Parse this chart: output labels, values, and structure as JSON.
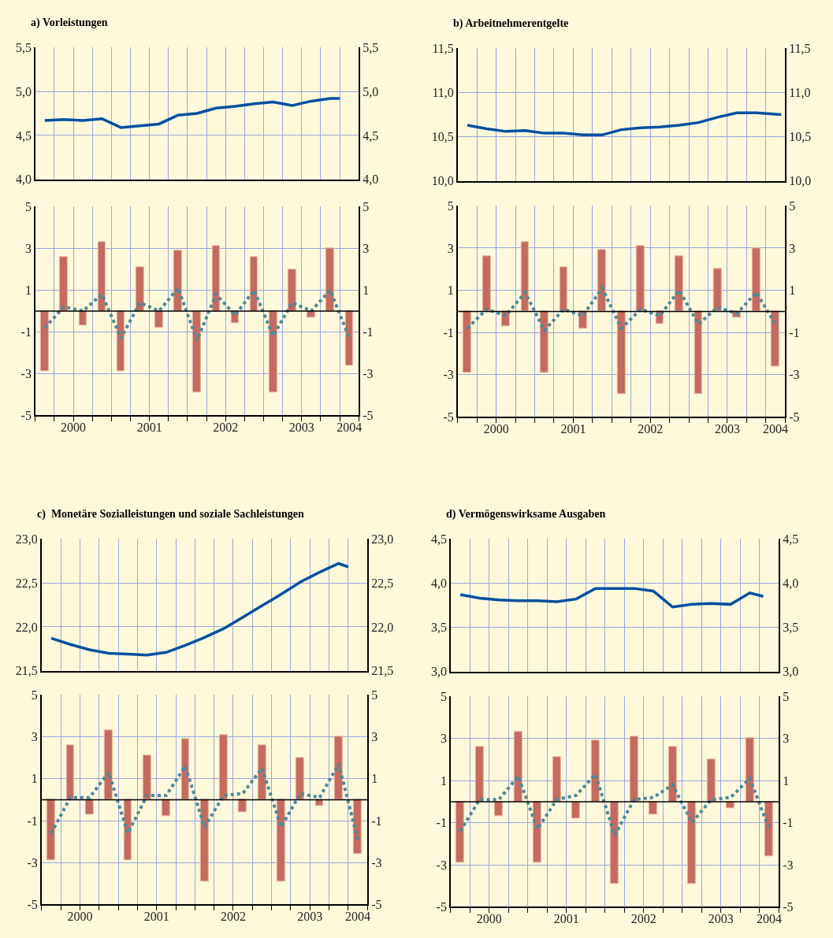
{
  "chart_data": [
    {
      "type": "line",
      "title": "a) Vorleistungen",
      "series": [
        {
          "color": "#0050a0",
          "line_style": "solid",
          "x": [
            2000.125,
            2000.375,
            2000.625,
            2000.875,
            2001.125,
            2001.375,
            2001.625,
            2001.875,
            2002.125,
            2002.375,
            2002.625,
            2002.875,
            2003.125,
            2003.375,
            2003.625,
            2003.875,
            2004.0
          ],
          "values": [
            4.67,
            4.68,
            4.67,
            4.69,
            4.59,
            4.61,
            4.63,
            4.73,
            4.75,
            4.81,
            4.83,
            4.86,
            4.88,
            4.84,
            4.89,
            4.92,
            4.92
          ]
        }
      ],
      "xlim": [
        2000,
        2004.25
      ],
      "xticks": [
        {
          "value": 2000,
          "label": null
        },
        {
          "value": 2000.25,
          "label": null
        },
        {
          "value": 2000.5,
          "label": null
        },
        {
          "value": 2000.75,
          "label": null
        },
        {
          "value": 2001,
          "label": null
        },
        {
          "value": 2001.25,
          "label": null
        },
        {
          "value": 2001.5,
          "label": null
        },
        {
          "value": 2001.75,
          "label": null
        },
        {
          "value": 2002,
          "label": null
        },
        {
          "value": 2002.25,
          "label": null
        },
        {
          "value": 2002.5,
          "label": null
        },
        {
          "value": 2002.75,
          "label": null
        },
        {
          "value": 2003,
          "label": null
        },
        {
          "value": 2003.25,
          "label": null
        },
        {
          "value": 2003.5,
          "label": null
        },
        {
          "value": 2003.75,
          "label": null
        },
        {
          "value": 2004,
          "label": null
        },
        {
          "value": 2004.25,
          "label": null
        }
      ],
      "ylim": [
        4,
        5.5
      ],
      "yticks": [
        {
          "value": 4,
          "label": "4,0"
        },
        {
          "value": 4.5,
          "label": "4,5"
        },
        {
          "value": 5,
          "label": "5,0"
        },
        {
          "value": 5.5,
          "label": "5,5"
        }
      ],
      "y2lim": [
        4,
        5.5
      ],
      "y2ticks": [
        {
          "value": 4,
          "label": "4,0"
        },
        {
          "value": 4.5,
          "label": "4,5"
        },
        {
          "value": 5,
          "label": "5,0"
        },
        {
          "value": 5.5,
          "label": "5,5"
        }
      ],
      "grid": true,
      "tick_labels": "y"
    },
    {
      "type": "bar",
      "x": [
        2000.125,
        2000.375,
        2000.625,
        2000.875,
        2001.125,
        2001.375,
        2001.625,
        2001.875,
        2002.125,
        2002.375,
        2002.625,
        2002.875,
        2003.125,
        2003.375,
        2003.625,
        2003.875,
        2004.125
      ],
      "series": [
        {
          "type": "bar",
          "color": "#c46a5e",
          "values": [
            -2.9,
            2.6,
            -0.7,
            3.3,
            -2.9,
            2.1,
            -0.8,
            2.9,
            -3.9,
            3.1,
            -0.6,
            2.6,
            -3.9,
            2.0,
            -0.3,
            3.0,
            -2.6
          ]
        },
        {
          "type": "line",
          "color": "#4a8a9a",
          "line_style": "dotted",
          "values": [
            -0.8,
            0.2,
            0.0,
            0.8,
            -1.3,
            0.4,
            0.0,
            1.1,
            -1.4,
            0.8,
            -0.2,
            1.0,
            -1.2,
            0.4,
            0.0,
            1.0,
            -1.3
          ]
        }
      ],
      "xlim": [
        2000,
        2004.25
      ],
      "xticks": [
        {
          "value": 2000,
          "label": null
        },
        {
          "value": 2000.25,
          "label": null
        },
        {
          "value": 2000.5,
          "label": null
        },
        {
          "value": 2000.75,
          "label": null
        },
        {
          "value": 2001,
          "label": null
        },
        {
          "value": 2001.25,
          "label": null
        },
        {
          "value": 2001.5,
          "label": null
        },
        {
          "value": 2001.75,
          "label": null
        },
        {
          "value": 2002,
          "label": null
        },
        {
          "value": 2002.25,
          "label": null
        },
        {
          "value": 2002.5,
          "label": null
        },
        {
          "value": 2002.75,
          "label": null
        },
        {
          "value": 2003,
          "label": null
        },
        {
          "value": 2003.25,
          "label": null
        },
        {
          "value": 2003.5,
          "label": null
        },
        {
          "value": 2003.75,
          "label": null
        },
        {
          "value": 2004,
          "label": null
        },
        {
          "value": 2004.25,
          "label": null
        },
        {
          "value": 2000.5,
          "label": "2000"
        },
        {
          "value": 2001.5,
          "label": "2001"
        },
        {
          "value": 2002.5,
          "label": "2002"
        },
        {
          "value": 2003.5,
          "label": "2003"
        },
        {
          "value": 2004.125,
          "label": "2004"
        }
      ],
      "ylim": [
        -5,
        5
      ],
      "yticks": [
        -5,
        -3,
        -1,
        1,
        3,
        5
      ],
      "y2lim": [
        -5,
        5
      ],
      "y2ticks": [
        -5,
        -3,
        -1,
        1,
        3,
        5
      ],
      "grid": true,
      "ref_lines": [
        {
          "axis": "y",
          "value": 0,
          "color": "#000000"
        }
      ]
    },
    {
      "type": "line",
      "title": "b) Arbeitnehmerentgelte",
      "series": [
        {
          "color": "#0050a0",
          "line_style": "solid",
          "x": [
            2000.125,
            2000.375,
            2000.625,
            2000.875,
            2001.125,
            2001.375,
            2001.625,
            2001.875,
            2002.125,
            2002.375,
            2002.625,
            2002.875,
            2003.125,
            2003.375,
            2003.625,
            2003.875,
            2004.2
          ],
          "values": [
            10.63,
            10.59,
            10.56,
            10.57,
            10.54,
            10.54,
            10.52,
            10.52,
            10.58,
            10.6,
            10.61,
            10.63,
            10.66,
            10.72,
            10.77,
            10.77,
            10.75
          ]
        }
      ],
      "xlim": [
        2000,
        2004.25
      ],
      "xticks": [
        {
          "value": 2000,
          "label": null
        },
        {
          "value": 2000.25,
          "label": null
        },
        {
          "value": 2000.5,
          "label": null
        },
        {
          "value": 2000.75,
          "label": null
        },
        {
          "value": 2001,
          "label": null
        },
        {
          "value": 2001.25,
          "label": null
        },
        {
          "value": 2001.5,
          "label": null
        },
        {
          "value": 2001.75,
          "label": null
        },
        {
          "value": 2002,
          "label": null
        },
        {
          "value": 2002.25,
          "label": null
        },
        {
          "value": 2002.5,
          "label": null
        },
        {
          "value": 2002.75,
          "label": null
        },
        {
          "value": 2003,
          "label": null
        },
        {
          "value": 2003.25,
          "label": null
        },
        {
          "value": 2003.5,
          "label": null
        },
        {
          "value": 2003.75,
          "label": null
        },
        {
          "value": 2004,
          "label": null
        },
        {
          "value": 2004.25,
          "label": null
        }
      ],
      "ylim": [
        10,
        11.5
      ],
      "yticks": [
        {
          "value": 10,
          "label": "10,0"
        },
        {
          "value": 10.5,
          "label": "10,5"
        },
        {
          "value": 11,
          "label": "11,0"
        },
        {
          "value": 11.5,
          "label": "11,5"
        }
      ],
      "y2lim": [
        10,
        11.5
      ],
      "y2ticks": [
        {
          "value": 10,
          "label": "10,0"
        },
        {
          "value": 10.5,
          "label": "10,5"
        },
        {
          "value": 11,
          "label": "11,0"
        },
        {
          "value": 11.5,
          "label": "11,5"
        }
      ],
      "grid": true,
      "tick_labels": "y"
    },
    {
      "type": "bar",
      "x": [
        2000.125,
        2000.375,
        2000.625,
        2000.875,
        2001.125,
        2001.375,
        2001.625,
        2001.875,
        2002.125,
        2002.375,
        2002.625,
        2002.875,
        2003.125,
        2003.375,
        2003.625,
        2003.875,
        2004.125
      ],
      "series": [
        {
          "type": "bar",
          "color": "#c46a5e",
          "values": [
            -2.9,
            2.6,
            -0.7,
            3.3,
            -2.9,
            2.1,
            -0.8,
            2.9,
            -3.9,
            3.1,
            -0.6,
            2.6,
            -3.9,
            2.0,
            -0.3,
            3.0,
            -2.6
          ]
        },
        {
          "type": "line",
          "color": "#4a8a9a",
          "line_style": "dotted",
          "values": [
            -0.8,
            0.1,
            -0.2,
            0.9,
            -0.9,
            0.1,
            -0.2,
            1.1,
            -0.8,
            0.1,
            -0.2,
            1.0,
            -0.6,
            0.2,
            -0.1,
            0.9,
            -0.6
          ]
        }
      ],
      "xlim": [
        2000,
        2004.25
      ],
      "xticks": [
        {
          "value": 2000,
          "label": null
        },
        {
          "value": 2000.25,
          "label": null
        },
        {
          "value": 2000.5,
          "label": null
        },
        {
          "value": 2000.75,
          "label": null
        },
        {
          "value": 2001,
          "label": null
        },
        {
          "value": 2001.25,
          "label": null
        },
        {
          "value": 2001.5,
          "label": null
        },
        {
          "value": 2001.75,
          "label": null
        },
        {
          "value": 2002,
          "label": null
        },
        {
          "value": 2002.25,
          "label": null
        },
        {
          "value": 2002.5,
          "label": null
        },
        {
          "value": 2002.75,
          "label": null
        },
        {
          "value": 2003,
          "label": null
        },
        {
          "value": 2003.25,
          "label": null
        },
        {
          "value": 2003.5,
          "label": null
        },
        {
          "value": 2003.75,
          "label": null
        },
        {
          "value": 2004,
          "label": null
        },
        {
          "value": 2004.25,
          "label": null
        },
        {
          "value": 2000.5,
          "label": "2000"
        },
        {
          "value": 2001.5,
          "label": "2001"
        },
        {
          "value": 2002.5,
          "label": "2002"
        },
        {
          "value": 2003.5,
          "label": "2003"
        },
        {
          "value": 2004.125,
          "label": "2004"
        }
      ],
      "ylim": [
        -5,
        5
      ],
      "yticks": [
        -5,
        -3,
        -1,
        1,
        3,
        5
      ],
      "y2lim": [
        -5,
        5
      ],
      "y2ticks": [
        -5,
        -3,
        -1,
        1,
        3,
        5
      ],
      "grid": true,
      "ref_lines": [
        {
          "axis": "y",
          "value": 0,
          "color": "#000000"
        }
      ]
    },
    {
      "type": "line",
      "title": "c)  Monetäre Sozialleistungen und soziale Sachleistungen",
      "series": [
        {
          "color": "#0050a0",
          "line_style": "solid",
          "x": [
            2000.125,
            2000.375,
            2000.625,
            2000.875,
            2001.125,
            2001.375,
            2001.625,
            2001.875,
            2002.125,
            2002.375,
            2002.625,
            2002.875,
            2003.125,
            2003.375,
            2003.625,
            2003.875,
            2004.0
          ],
          "values": [
            21.87,
            21.8,
            21.74,
            21.7,
            21.69,
            21.68,
            21.71,
            21.79,
            21.88,
            21.98,
            22.11,
            22.24,
            22.37,
            22.51,
            22.62,
            22.72,
            22.68
          ]
        }
      ],
      "xlim": [
        2000,
        2004.25
      ],
      "xticks": [
        {
          "value": 2000,
          "label": null
        },
        {
          "value": 2000.25,
          "label": null
        },
        {
          "value": 2000.5,
          "label": null
        },
        {
          "value": 2000.75,
          "label": null
        },
        {
          "value": 2001,
          "label": null
        },
        {
          "value": 2001.25,
          "label": null
        },
        {
          "value": 2001.5,
          "label": null
        },
        {
          "value": 2001.75,
          "label": null
        },
        {
          "value": 2002,
          "label": null
        },
        {
          "value": 2002.25,
          "label": null
        },
        {
          "value": 2002.5,
          "label": null
        },
        {
          "value": 2002.75,
          "label": null
        },
        {
          "value": 2003,
          "label": null
        },
        {
          "value": 2003.25,
          "label": null
        },
        {
          "value": 2003.5,
          "label": null
        },
        {
          "value": 2003.75,
          "label": null
        },
        {
          "value": 2004,
          "label": null
        },
        {
          "value": 2004.25,
          "label": null
        }
      ],
      "ylim": [
        21.5,
        23
      ],
      "yticks": [
        {
          "value": 21.5,
          "label": "21,5"
        },
        {
          "value": 22,
          "label": "22,0"
        },
        {
          "value": 22.5,
          "label": "22,5"
        },
        {
          "value": 23,
          "label": "23,0"
        }
      ],
      "y2lim": [
        21.5,
        23
      ],
      "y2ticks": [
        {
          "value": 21.5,
          "label": "21,5"
        },
        {
          "value": 22,
          "label": "22,0"
        },
        {
          "value": 22.5,
          "label": "22,5"
        },
        {
          "value": 23,
          "label": "23,0"
        }
      ],
      "grid": true,
      "tick_labels": "y"
    },
    {
      "type": "bar",
      "x": [
        2000.125,
        2000.375,
        2000.625,
        2000.875,
        2001.125,
        2001.375,
        2001.625,
        2001.875,
        2002.125,
        2002.375,
        2002.625,
        2002.875,
        2003.125,
        2003.375,
        2003.625,
        2003.875,
        2004.125
      ],
      "series": [
        {
          "type": "bar",
          "color": "#c46a5e",
          "values": [
            -2.9,
            2.6,
            -0.7,
            3.3,
            -2.9,
            2.1,
            -0.8,
            2.9,
            -3.9,
            3.1,
            -0.6,
            2.6,
            -3.9,
            2.0,
            -0.3,
            3.0,
            -2.6
          ]
        },
        {
          "type": "line",
          "color": "#4a8a9a",
          "line_style": "dotted",
          "values": [
            -1.6,
            0.1,
            0.1,
            1.3,
            -1.6,
            0.2,
            0.2,
            1.6,
            -1.3,
            0.2,
            0.3,
            1.5,
            -1.3,
            0.3,
            0.1,
            1.7,
            -1.9
          ]
        }
      ],
      "xlim": [
        2000,
        2004.25
      ],
      "xticks": [
        {
          "value": 2000,
          "label": null
        },
        {
          "value": 2000.25,
          "label": null
        },
        {
          "value": 2000.5,
          "label": null
        },
        {
          "value": 2000.75,
          "label": null
        },
        {
          "value": 2001,
          "label": null
        },
        {
          "value": 2001.25,
          "label": null
        },
        {
          "value": 2001.5,
          "label": null
        },
        {
          "value": 2001.75,
          "label": null
        },
        {
          "value": 2002,
          "label": null
        },
        {
          "value": 2002.25,
          "label": null
        },
        {
          "value": 2002.5,
          "label": null
        },
        {
          "value": 2002.75,
          "label": null
        },
        {
          "value": 2003,
          "label": null
        },
        {
          "value": 2003.25,
          "label": null
        },
        {
          "value": 2003.5,
          "label": null
        },
        {
          "value": 2003.75,
          "label": null
        },
        {
          "value": 2004,
          "label": null
        },
        {
          "value": 2004.25,
          "label": null
        },
        {
          "value": 2000.5,
          "label": "2000"
        },
        {
          "value": 2001.5,
          "label": "2001"
        },
        {
          "value": 2002.5,
          "label": "2002"
        },
        {
          "value": 2003.5,
          "label": "2003"
        },
        {
          "value": 2004.125,
          "label": "2004"
        }
      ],
      "ylim": [
        -5,
        5
      ],
      "yticks": [
        -5,
        -3,
        -1,
        1,
        3,
        5
      ],
      "y2lim": [
        -5,
        5
      ],
      "y2ticks": [
        -5,
        -3,
        -1,
        1,
        3,
        5
      ],
      "grid": true,
      "ref_lines": [
        {
          "axis": "y",
          "value": 0,
          "color": "#000000"
        }
      ]
    },
    {
      "type": "line",
      "title": "d) Vermögenswirksame Ausgaben",
      "series": [
        {
          "color": "#0050a0",
          "line_style": "solid",
          "x": [
            2000.125,
            2000.375,
            2000.625,
            2000.875,
            2001.125,
            2001.375,
            2001.625,
            2001.875,
            2002.125,
            2002.375,
            2002.625,
            2002.875,
            2003.125,
            2003.375,
            2003.625,
            2003.875,
            2004.05
          ],
          "values": [
            3.87,
            3.83,
            3.81,
            3.8,
            3.8,
            3.79,
            3.82,
            3.94,
            3.94,
            3.94,
            3.91,
            3.73,
            3.76,
            3.77,
            3.76,
            3.89,
            3.85
          ]
        }
      ],
      "xlim": [
        2000,
        2004.25
      ],
      "xticks": [
        {
          "value": 2000,
          "label": null
        },
        {
          "value": 2000.25,
          "label": null
        },
        {
          "value": 2000.5,
          "label": null
        },
        {
          "value": 2000.75,
          "label": null
        },
        {
          "value": 2001,
          "label": null
        },
        {
          "value": 2001.25,
          "label": null
        },
        {
          "value": 2001.5,
          "label": null
        },
        {
          "value": 2001.75,
          "label": null
        },
        {
          "value": 2002,
          "label": null
        },
        {
          "value": 2002.25,
          "label": null
        },
        {
          "value": 2002.5,
          "label": null
        },
        {
          "value": 2002.75,
          "label": null
        },
        {
          "value": 2003,
          "label": null
        },
        {
          "value": 2003.25,
          "label": null
        },
        {
          "value": 2003.5,
          "label": null
        },
        {
          "value": 2003.75,
          "label": null
        },
        {
          "value": 2004,
          "label": null
        },
        {
          "value": 2004.25,
          "label": null
        }
      ],
      "ylim": [
        3,
        4.5
      ],
      "yticks": [
        {
          "value": 3,
          "label": "3,0"
        },
        {
          "value": 3.5,
          "label": "3,5"
        },
        {
          "value": 4,
          "label": "4,0"
        },
        {
          "value": 4.5,
          "label": "4,5"
        }
      ],
      "y2lim": [
        3,
        4.5
      ],
      "y2ticks": [
        {
          "value": 3,
          "label": "3,0"
        },
        {
          "value": 3.5,
          "label": "3,5"
        },
        {
          "value": 4,
          "label": "4,0"
        },
        {
          "value": 4.5,
          "label": "4,5"
        }
      ],
      "grid": true,
      "tick_labels": "y"
    },
    {
      "type": "bar",
      "x": [
        2000.125,
        2000.375,
        2000.625,
        2000.875,
        2001.125,
        2001.375,
        2001.625,
        2001.875,
        2002.125,
        2002.375,
        2002.625,
        2002.875,
        2003.125,
        2003.375,
        2003.625,
        2003.875,
        2004.125
      ],
      "series": [
        {
          "type": "bar",
          "color": "#c46a5e",
          "values": [
            -2.9,
            2.6,
            -0.7,
            3.3,
            -2.9,
            2.1,
            -0.8,
            2.9,
            -3.9,
            3.1,
            -0.6,
            2.6,
            -3.9,
            2.0,
            -0.3,
            3.0,
            -2.6
          ]
        },
        {
          "type": "line",
          "color": "#4a8a9a",
          "line_style": "dotted",
          "values": [
            -1.4,
            0.1,
            0.1,
            1.2,
            -1.3,
            0.1,
            0.3,
            1.3,
            -1.6,
            0.1,
            0.2,
            0.8,
            -1.0,
            0.1,
            0.2,
            1.1,
            -1.3
          ]
        }
      ],
      "xlim": [
        2000,
        2004.25
      ],
      "xticks": [
        {
          "value": 2000,
          "label": null
        },
        {
          "value": 2000.25,
          "label": null
        },
        {
          "value": 2000.5,
          "label": null
        },
        {
          "value": 2000.75,
          "label": null
        },
        {
          "value": 2001,
          "label": null
        },
        {
          "value": 2001.25,
          "label": null
        },
        {
          "value": 2001.5,
          "label": null
        },
        {
          "value": 2001.75,
          "label": null
        },
        {
          "value": 2002,
          "label": null
        },
        {
          "value": 2002.25,
          "label": null
        },
        {
          "value": 2002.5,
          "label": null
        },
        {
          "value": 2002.75,
          "label": null
        },
        {
          "value": 2003,
          "label": null
        },
        {
          "value": 2003.25,
          "label": null
        },
        {
          "value": 2003.5,
          "label": null
        },
        {
          "value": 2003.75,
          "label": null
        },
        {
          "value": 2004,
          "label": null
        },
        {
          "value": 2004.25,
          "label": null
        },
        {
          "value": 2000.5,
          "label": "2000"
        },
        {
          "value": 2001.5,
          "label": "2001"
        },
        {
          "value": 2002.5,
          "label": "2002"
        },
        {
          "value": 2003.5,
          "label": "2003"
        },
        {
          "value": 2004.125,
          "label": "2004"
        }
      ],
      "ylim": [
        -5,
        5
      ],
      "yticks": [
        -5,
        -3,
        -1,
        1,
        3,
        5
      ],
      "y2lim": [
        -5,
        5
      ],
      "y2ticks": [
        -5,
        -3,
        -1,
        1,
        3,
        5
      ],
      "grid": true,
      "ref_lines": [
        {
          "axis": "y",
          "value": 0,
          "color": "#000000"
        }
      ]
    }
  ]
}
